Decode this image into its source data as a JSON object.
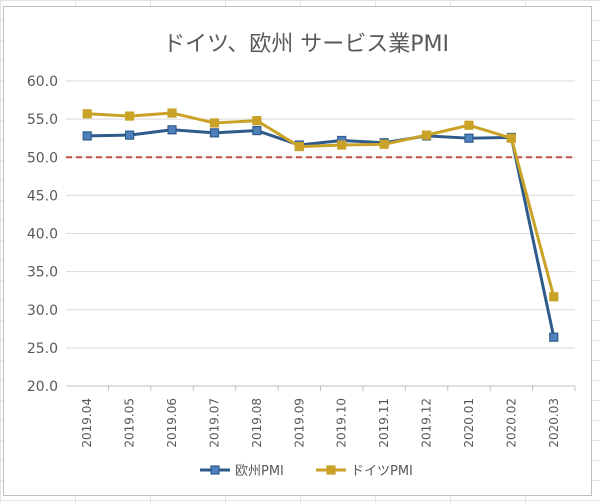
{
  "chart_data": {
    "type": "line",
    "title": "ドイツ、欧州 サービス業PMI",
    "xlabel": "",
    "ylabel": "",
    "categories": [
      "2019.04",
      "2019.05",
      "2019.06",
      "2019.07",
      "2019.08",
      "2019.09",
      "2019.10",
      "2019.11",
      "2019.12",
      "2020.01",
      "2020.02",
      "2020.03"
    ],
    "ylim": [
      20,
      60
    ],
    "yticks": [
      "20.0",
      "25.0",
      "30.0",
      "35.0",
      "40.0",
      "45.0",
      "50.0",
      "55.0",
      "60.0"
    ],
    "grid": true,
    "legend_position": "bottom",
    "reference_line": {
      "y": 50,
      "style": "dashed",
      "color": "#c0504d"
    },
    "series": [
      {
        "name": "欧州PMI",
        "color": "#2e5b8a",
        "marker": "square",
        "values": [
          52.8,
          52.9,
          53.6,
          53.2,
          53.5,
          51.6,
          52.2,
          51.9,
          52.8,
          52.5,
          52.6,
          26.4
        ]
      },
      {
        "name": "ドイツPMI",
        "color": "#c9a227",
        "marker": "square",
        "values": [
          55.7,
          55.4,
          55.8,
          54.5,
          54.8,
          51.4,
          51.6,
          51.7,
          52.9,
          54.2,
          52.5,
          31.7
        ]
      }
    ]
  }
}
